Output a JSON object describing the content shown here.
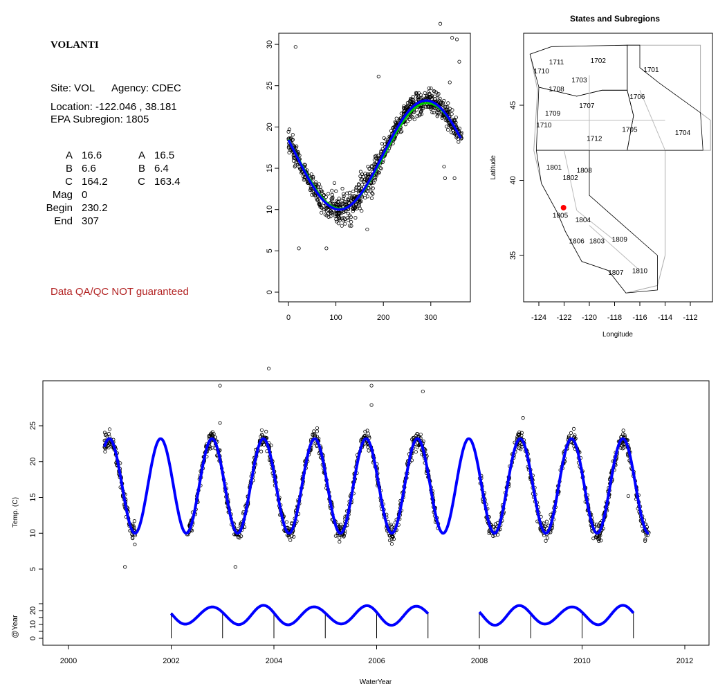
{
  "info": {
    "site_name": "VOLANTI",
    "site": "Site: VOL",
    "agency": "Agency: CDEC",
    "location": "Location: -122.046 , 38.181",
    "subregion": "EPA Subregion: 1805",
    "params_left": [
      [
        "A",
        "16.6"
      ],
      [
        "B",
        "6.6"
      ],
      [
        "C",
        "164.2"
      ],
      [
        "Mag",
        "0"
      ],
      [
        "Begin",
        "230.2"
      ],
      [
        "End",
        "307"
      ]
    ],
    "params_right": [
      [
        "A",
        "16.5"
      ],
      [
        "B",
        "6.4"
      ],
      [
        "C",
        "163.4"
      ]
    ],
    "disclaimer": "Data QA/QC NOT guaranteed"
  },
  "chart_data": [
    {
      "type": "scatter",
      "name": "day-of-water-year",
      "xlim": [
        -20,
        380
      ],
      "ylim": [
        -1,
        31
      ],
      "xticks": [
        0,
        100,
        200,
        300
      ],
      "yticks": [
        0,
        5,
        10,
        15,
        20,
        25,
        30
      ],
      "fit": {
        "A": 16.6,
        "B": 6.6,
        "peak_day": 290,
        "color": "#0000ff"
      },
      "fit2": {
        "A": 16.5,
        "B": 6.4,
        "peak_day": 292,
        "color": "#00cc00"
      },
      "outliers": [
        [
          15,
          29.7
        ],
        [
          22,
          5.3
        ],
        [
          80,
          5.3
        ],
        [
          190,
          26.1
        ],
        [
          320,
          32.5
        ],
        [
          330,
          13.8
        ],
        [
          345,
          30.8
        ],
        [
          355,
          30.6
        ],
        [
          340,
          25.4
        ],
        [
          350,
          13.8
        ],
        [
          360,
          27.9
        ],
        [
          328,
          15.2
        ],
        [
          166,
          7.6
        ]
      ]
    },
    {
      "type": "map",
      "title": "States and Subregions",
      "xlabel": "Longitude",
      "ylabel": "Latitude",
      "xlim": [
        -125.2,
        -110.2
      ],
      "ylim": [
        32.3,
        50.2
      ],
      "xticks": [
        -124,
        -122,
        -120,
        -118,
        -116,
        -114,
        -112
      ],
      "yticks": [
        35,
        40,
        45
      ],
      "site": {
        "lon": -122.046,
        "lat": 38.181,
        "color": "#ff0000"
      },
      "labels": [
        [
          "1711",
          -122.6,
          47.9
        ],
        [
          "1702",
          -119.3,
          48.0
        ],
        [
          "1701",
          -115.1,
          47.4
        ],
        [
          "1710",
          -123.8,
          47.3
        ],
        [
          "1703",
          -120.8,
          46.7
        ],
        [
          "1708",
          -122.6,
          46.1
        ],
        [
          "1706",
          -116.2,
          45.6
        ],
        [
          "1707",
          -120.2,
          45.0
        ],
        [
          "1709",
          -122.9,
          44.5
        ],
        [
          "1710",
          -123.6,
          43.7
        ],
        [
          "1705",
          -116.8,
          43.4
        ],
        [
          "1704",
          -112.6,
          43.2
        ],
        [
          "1712",
          -119.6,
          42.8
        ],
        [
          "1801",
          -122.8,
          40.9
        ],
        [
          "1808",
          -120.4,
          40.7
        ],
        [
          "1802",
          -121.5,
          40.2
        ],
        [
          "1805",
          -122.3,
          37.7
        ],
        [
          "1804",
          -120.5,
          37.4
        ],
        [
          "1806",
          -121.0,
          36.0
        ],
        [
          "1803",
          -119.4,
          36.0
        ],
        [
          "1809",
          -117.6,
          36.1
        ],
        [
          "1810",
          -116.0,
          34.0
        ],
        [
          "1807",
          -117.9,
          33.9
        ]
      ]
    },
    {
      "type": "line",
      "name": "time-series",
      "xlabel": "WaterYear",
      "ylabel": "Temp. (C)",
      "ylabel2": "@Year",
      "xlim": [
        1999.5,
        2012.5
      ],
      "xticks": [
        2000,
        2002,
        2004,
        2006,
        2008,
        2010,
        2012
      ],
      "yticks": [
        5,
        10,
        15,
        20,
        25
      ],
      "yticks2": [
        0,
        10,
        20
      ],
      "data_range": [
        2000.7,
        2011.3
      ],
      "gaps": [
        [
          2001.3,
          2002.3
        ],
        [
          2007.2,
          2008.0
        ]
      ],
      "annual_segments": [
        [
          2002,
          2007
        ],
        [
          2008,
          2011
        ]
      ],
      "outliers": [
        [
          2001.1,
          5.3
        ],
        [
          2002.95,
          30.6
        ],
        [
          2002.95,
          25.4
        ],
        [
          2003.25,
          5.3
        ],
        [
          2003.9,
          33.0
        ],
        [
          2005.9,
          30.6
        ],
        [
          2005.9,
          27.9
        ],
        [
          2006.9,
          29.8
        ],
        [
          2008.85,
          26.1
        ],
        [
          2010.9,
          15.2
        ]
      ]
    }
  ]
}
